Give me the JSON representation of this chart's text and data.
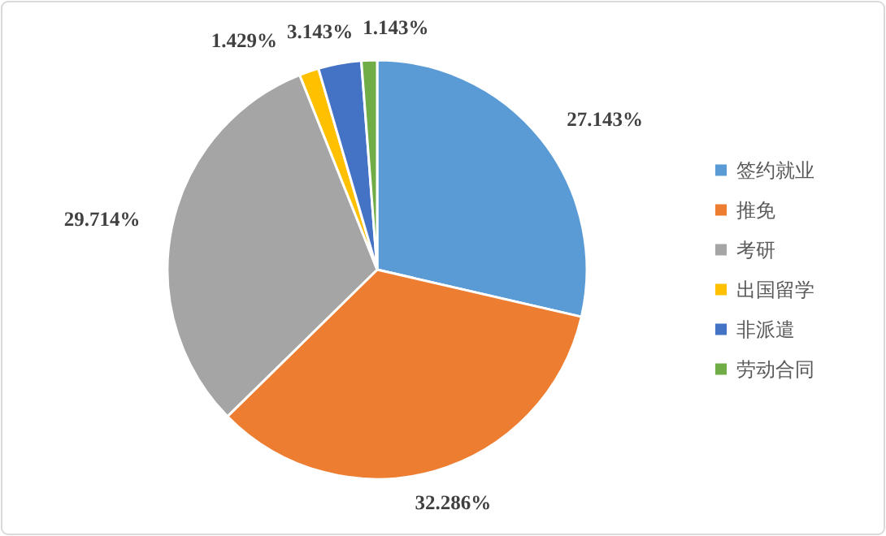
{
  "chart_data": {
    "type": "pie",
    "categories": [
      "签约就业",
      "推免",
      "考研",
      "出国留学",
      "非派遣",
      "劳动合同"
    ],
    "values": [
      27.143,
      32.286,
      29.714,
      1.429,
      3.143,
      1.143
    ],
    "colors": [
      "#5b9bd5",
      "#ed7d31",
      "#a5a5a5",
      "#ffc000",
      "#4472c4",
      "#70ad47"
    ],
    "value_labels": [
      "27.143%",
      "32.286%",
      "29.714%",
      "1.429%",
      "3.143%",
      "1.143%"
    ],
    "legend": "right"
  }
}
